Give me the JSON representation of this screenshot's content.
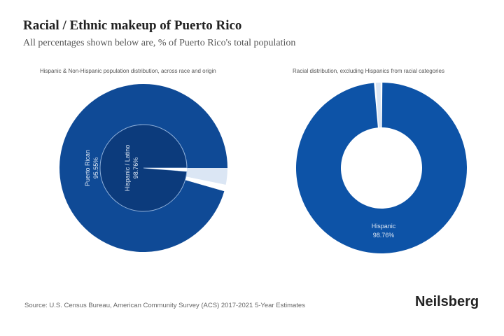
{
  "title": "Racial / Ethnic makeup of Puerto Rico",
  "subtitle": "All percentages shown below are, % of Puerto Rico's total population",
  "source": "Source: U.S. Census Bureau, American Community Survey (ACS) 2017-2021 5-Year Estimates",
  "brand": "Neilsberg",
  "colors": {
    "outer": "#0f4a96",
    "inner": "#0c3b7c",
    "donut": "#0d53a7",
    "light": "#dbe6f4"
  },
  "chart_data": [
    {
      "type": "pie",
      "title": "Hispanic & Non-Hispanic population distribution, across race and origin",
      "inner": [
        {
          "label": "Hispanic / Latino",
          "value": 98.76,
          "text": "Hispanic / Latino",
          "pct": "98.76%"
        },
        {
          "label": "",
          "value": 1.24
        }
      ],
      "outer": [
        {
          "label": "Puerto Rican",
          "value": 95.55,
          "text": "Puerto Rican",
          "pct": "95.55%"
        },
        {
          "label": "",
          "value": 3.21
        },
        {
          "label": "",
          "value": 1.24
        }
      ]
    },
    {
      "type": "pie",
      "title": "Racial distribution, excluding Hispanics from racial categories",
      "slices": [
        {
          "label": "Hispanic",
          "value": 98.76,
          "text": "Hispanic",
          "pct": "98.76%"
        },
        {
          "label": "",
          "value": 1.24
        }
      ]
    }
  ]
}
